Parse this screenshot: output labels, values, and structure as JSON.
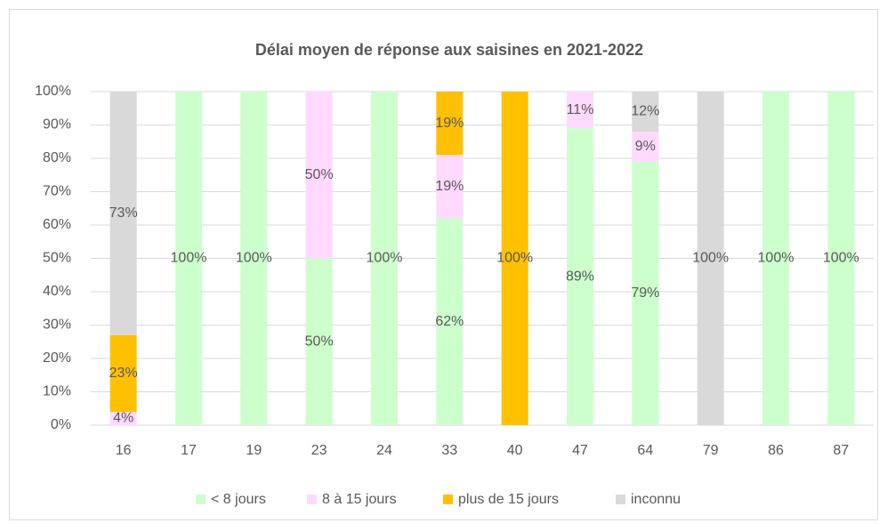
{
  "chart_data": {
    "type": "stacked_bar",
    "title": "Délai moyen de réponse aux saisines en 2021-2022",
    "categories": [
      "16",
      "17",
      "19",
      "23",
      "24",
      "33",
      "40",
      "47",
      "64",
      "79",
      "86",
      "87"
    ],
    "series": [
      {
        "name": "< 8 jours",
        "color": "#ccffcc",
        "values": [
          0,
          100,
          100,
          50,
          100,
          62,
          0,
          89,
          79,
          0,
          100,
          100
        ],
        "value_labels": [
          null,
          "100%",
          "100%",
          "50%",
          "100%",
          "62%",
          null,
          "89%",
          "79%",
          null,
          "100%",
          "100%"
        ]
      },
      {
        "name": "8 à 15 jours",
        "color": "#ffd9ff",
        "values": [
          4,
          0,
          0,
          50,
          0,
          19,
          0,
          11,
          9,
          0,
          0,
          0
        ],
        "value_labels": [
          "4%",
          null,
          null,
          "50%",
          null,
          "19%",
          null,
          "11%",
          "9%",
          null,
          null,
          null
        ]
      },
      {
        "name": "plus de 15 jours",
        "color": "#ffc000",
        "values": [
          23,
          0,
          0,
          0,
          0,
          19,
          100,
          0,
          0,
          0,
          0,
          0
        ],
        "value_labels": [
          "23%",
          null,
          null,
          null,
          null,
          "19%",
          "100%",
          null,
          null,
          null,
          null,
          null
        ]
      },
      {
        "name": "inconnu",
        "color": "#d9d9d9",
        "values": [
          73,
          0,
          0,
          0,
          0,
          0,
          0,
          0,
          12,
          100,
          0,
          0
        ],
        "value_labels": [
          "73%",
          null,
          null,
          null,
          null,
          null,
          null,
          null,
          "12%",
          "100%",
          null,
          null
        ]
      }
    ],
    "ylim": [
      0,
      100
    ],
    "yticks": [
      {
        "value": 0,
        "label": "0%"
      },
      {
        "value": 10,
        "label": "10%"
      },
      {
        "value": 20,
        "label": "20%"
      },
      {
        "value": 30,
        "label": "30%"
      },
      {
        "value": 40,
        "label": "40%"
      },
      {
        "value": 50,
        "label": "50%"
      },
      {
        "value": 60,
        "label": "60%"
      },
      {
        "value": 70,
        "label": "70%"
      },
      {
        "value": 80,
        "label": "80%"
      },
      {
        "value": 90,
        "label": "90%"
      },
      {
        "value": 100,
        "label": "100%"
      }
    ],
    "grid": true,
    "legend": "bottom"
  }
}
